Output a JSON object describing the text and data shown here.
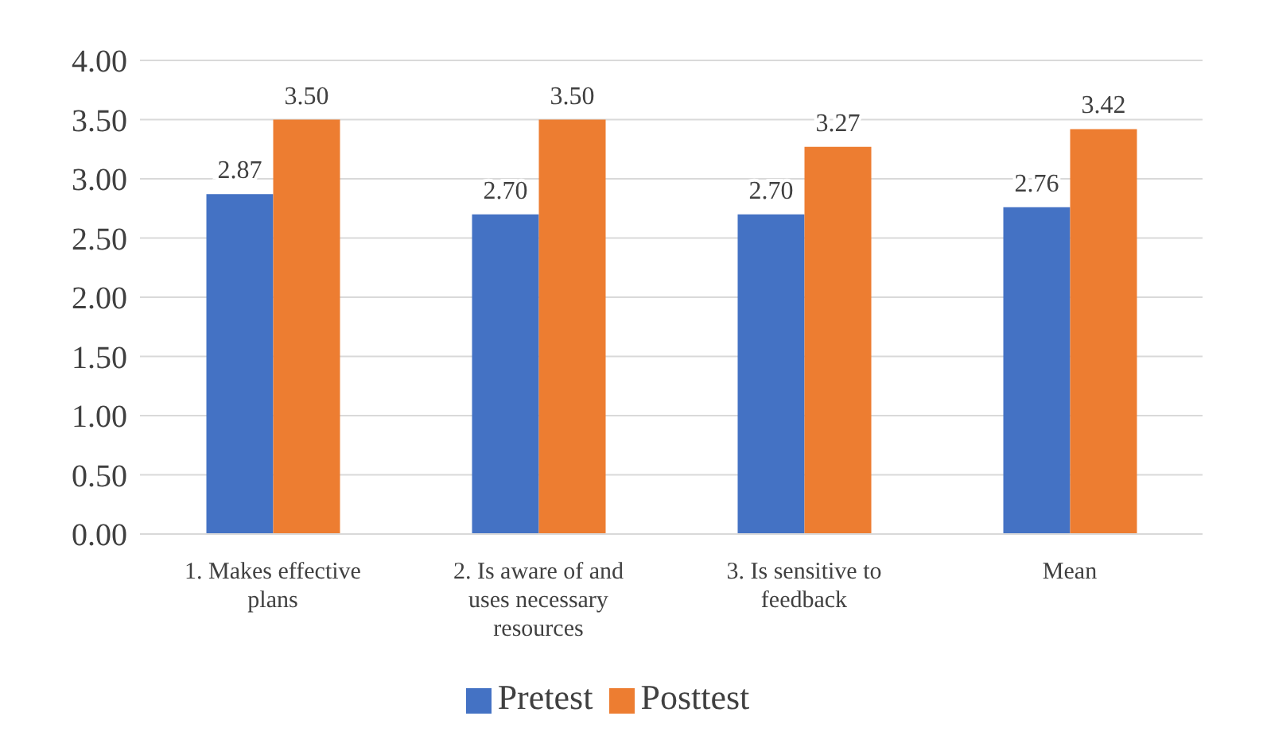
{
  "chart_data": {
    "type": "bar",
    "categories": [
      "1. Makes effective plans",
      "2. Is aware of and uses necessary resources",
      "3. Is sensitive to feedback",
      "Mean"
    ],
    "series": [
      {
        "name": "Pretest",
        "color": "#4472c4",
        "values": [
          2.87,
          2.7,
          2.7,
          2.76
        ],
        "value_labels": [
          "2.87",
          "2.70",
          "2.70",
          "2.76"
        ]
      },
      {
        "name": "Posttest",
        "color": "#ed7d31",
        "values": [
          3.5,
          3.5,
          3.27,
          3.42
        ],
        "value_labels": [
          "3.50",
          "3.50",
          "3.27",
          "3.42"
        ]
      }
    ],
    "ylim": [
      0,
      4
    ],
    "yticks": [
      {
        "value": 0,
        "label": "0.00"
      },
      {
        "value": 0.5,
        "label": "0.50"
      },
      {
        "value": 1,
        "label": "1.00"
      },
      {
        "value": 1.5,
        "label": "1.50"
      },
      {
        "value": 2,
        "label": "2.00"
      },
      {
        "value": 2.5,
        "label": "2.50"
      },
      {
        "value": 3,
        "label": "3.00"
      },
      {
        "value": 3.5,
        "label": "3.50"
      },
      {
        "value": 4,
        "label": "4.00"
      }
    ],
    "grid": "y",
    "legend": "bottom"
  }
}
